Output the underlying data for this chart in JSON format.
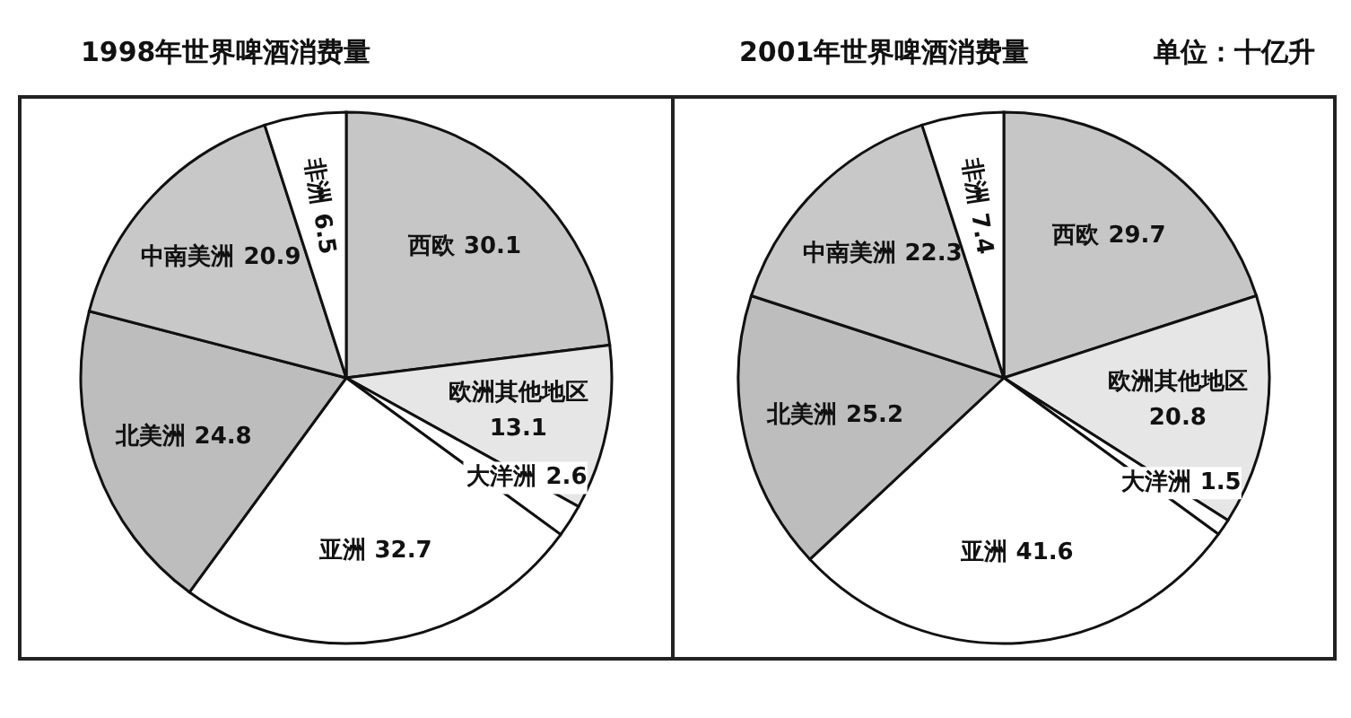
{
  "chart_data": [
    {
      "type": "pie",
      "title": "1998年世界啤酒消费量",
      "categories": [
        "西欧",
        "欧洲其他地区",
        "大洋洲",
        "亚洲",
        "北美洲",
        "中南美洲",
        "非洲"
      ],
      "values": [
        30.1,
        13.1,
        2.6,
        32.7,
        24.8,
        20.9,
        6.5
      ],
      "colors": [
        "#c6c6c6",
        "#e6e6e6",
        "#ffffff",
        "#ffffff",
        "#bdbdbd",
        "#c8c8c8",
        "#ffffff"
      ],
      "data_labels": true
    },
    {
      "type": "pie",
      "title": "2001年世界啤酒消费量",
      "annotations": [
        "单位：十亿升"
      ],
      "categories": [
        "西欧",
        "欧洲其他地区",
        "大洋洲",
        "亚洲",
        "北美洲",
        "中南美洲",
        "非洲"
      ],
      "values": [
        29.7,
        20.8,
        1.5,
        41.6,
        25.2,
        22.3,
        7.4
      ],
      "colors": [
        "#c6c6c6",
        "#e6e6e6",
        "#ffffff",
        "#ffffff",
        "#bdbdbd",
        "#c8c8c8",
        "#ffffff"
      ],
      "data_labels": true
    }
  ]
}
